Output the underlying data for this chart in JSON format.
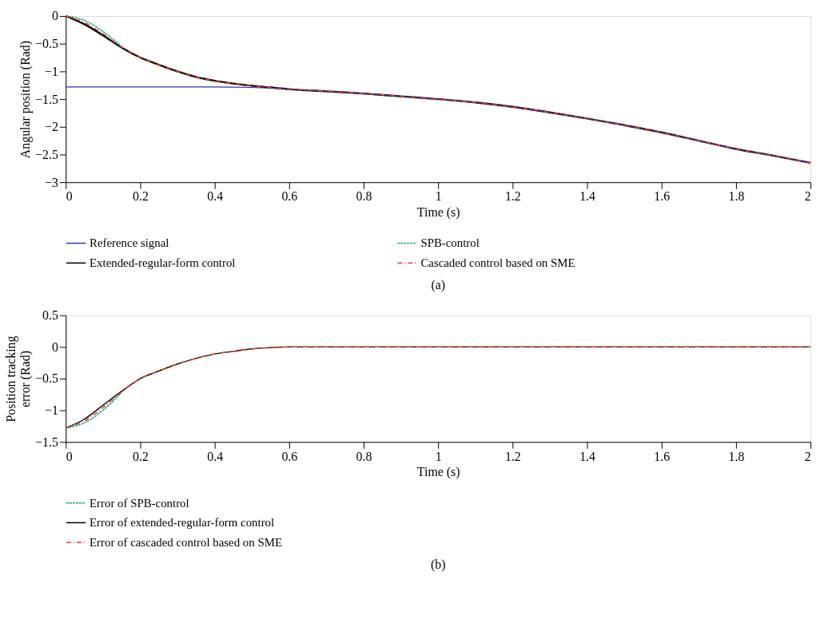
{
  "chart_data": [
    {
      "type": "line",
      "xlabel": "Time (s)",
      "ylabel": "Angular position (Rad)",
      "xlim": [
        0,
        2
      ],
      "ylim": [
        -3,
        0
      ],
      "xticks": [
        0,
        0.2,
        0.4,
        0.6,
        0.8,
        1,
        1.2,
        1.4,
        1.6,
        1.8,
        2
      ],
      "yticks": [
        -3,
        -2.5,
        -2,
        -1.5,
        -1,
        -0.5,
        0
      ],
      "grid": false,
      "legend": "bottom",
      "annotations": [
        "(a)"
      ],
      "series": [
        {
          "name": "Reference signal",
          "color": "#3030a8",
          "line_style": "solid",
          "x": [
            0,
            0.2,
            0.4,
            0.5,
            0.6,
            0.7,
            0.8,
            0.9,
            1.0,
            1.1,
            1.2,
            1.3,
            1.4,
            1.5,
            1.6,
            1.7,
            1.8,
            1.9,
            2.0
          ],
          "values": [
            -1.28,
            -1.28,
            -1.28,
            -1.29,
            -1.32,
            -1.36,
            -1.4,
            -1.45,
            -1.5,
            -1.56,
            -1.64,
            -1.74,
            -1.85,
            -1.97,
            -2.1,
            -2.25,
            -2.4,
            -2.52,
            -2.65
          ]
        },
        {
          "name": "SPB-control",
          "color": "#20a080",
          "line_style": "dotted",
          "x": [
            0,
            0.05,
            0.1,
            0.15
          ],
          "values": [
            0,
            -0.08,
            -0.28,
            -0.55
          ]
        },
        {
          "name": "Extended-regular-form control",
          "color": "#000000",
          "line_style": "solid",
          "x": [
            0,
            0.05,
            0.1,
            0.15,
            0.2,
            0.25,
            0.3,
            0.35,
            0.4,
            0.45,
            0.5,
            0.55,
            0.6,
            0.7,
            0.8,
            0.9,
            1.0,
            1.1,
            1.2,
            1.3,
            1.4,
            1.5,
            1.6,
            1.7,
            1.8,
            1.9,
            2.0
          ],
          "values": [
            0,
            -0.15,
            -0.35,
            -0.57,
            -0.75,
            -0.88,
            -1.0,
            -1.1,
            -1.17,
            -1.22,
            -1.26,
            -1.29,
            -1.32,
            -1.36,
            -1.4,
            -1.45,
            -1.5,
            -1.56,
            -1.64,
            -1.74,
            -1.85,
            -1.97,
            -2.1,
            -2.25,
            -2.4,
            -2.52,
            -2.65
          ]
        },
        {
          "name": "Cascaded control based on SME",
          "color": "#e8412c",
          "line_style": "dashdot",
          "x": [
            0,
            0.05,
            0.1,
            0.15,
            0.2,
            0.25,
            0.3,
            0.35,
            0.4,
            0.45,
            0.5,
            0.55,
            0.6,
            0.7,
            0.8,
            0.9,
            1.0,
            1.1,
            1.2,
            1.3,
            1.4,
            1.5,
            1.6,
            1.7,
            1.8,
            1.9,
            2.0
          ],
          "values": [
            0,
            -0.12,
            -0.32,
            -0.56,
            -0.75,
            -0.88,
            -1.0,
            -1.1,
            -1.17,
            -1.22,
            -1.26,
            -1.29,
            -1.32,
            -1.36,
            -1.4,
            -1.45,
            -1.5,
            -1.56,
            -1.64,
            -1.74,
            -1.85,
            -1.97,
            -2.1,
            -2.25,
            -2.4,
            -2.52,
            -2.65
          ]
        }
      ]
    },
    {
      "type": "line",
      "xlabel": "Time (s)",
      "ylabel": "Position tracking error (Rad)",
      "xlim": [
        0,
        2
      ],
      "ylim": [
        -1.5,
        0.5
      ],
      "xticks": [
        0,
        0.2,
        0.4,
        0.6,
        0.8,
        1,
        1.2,
        1.4,
        1.6,
        1.8,
        2
      ],
      "yticks": [
        -1.5,
        -1,
        -0.5,
        0,
        0.5
      ],
      "grid": false,
      "legend": "bottom",
      "annotations": [
        "(b)"
      ],
      "series": [
        {
          "name": "Error of SPB-control",
          "color": "#20a080",
          "line_style": "dotted",
          "x": [
            0,
            0.05,
            0.1,
            0.15
          ],
          "values": [
            -1.28,
            -1.2,
            -1.0,
            -0.72
          ]
        },
        {
          "name": "Error of extended-regular-form control",
          "color": "#000000",
          "line_style": "solid",
          "x": [
            0,
            0.05,
            0.1,
            0.15,
            0.2,
            0.25,
            0.3,
            0.35,
            0.4,
            0.45,
            0.5,
            0.55,
            0.6,
            2.0
          ],
          "values": [
            -1.28,
            -1.14,
            -0.92,
            -0.7,
            -0.5,
            -0.38,
            -0.27,
            -0.18,
            -0.11,
            -0.07,
            -0.03,
            -0.01,
            0,
            0
          ]
        },
        {
          "name": "Error of cascaded control based on SME",
          "color": "#e8412c",
          "line_style": "dashdot",
          "x": [
            0,
            0.05,
            0.1,
            0.15,
            0.2,
            0.25,
            0.3,
            0.35,
            0.4,
            0.45,
            0.5,
            0.55,
            0.6,
            2.0
          ],
          "values": [
            -1.28,
            -1.17,
            -0.96,
            -0.71,
            -0.5,
            -0.38,
            -0.27,
            -0.18,
            -0.11,
            -0.07,
            -0.03,
            -0.01,
            0,
            0
          ]
        }
      ]
    }
  ]
}
